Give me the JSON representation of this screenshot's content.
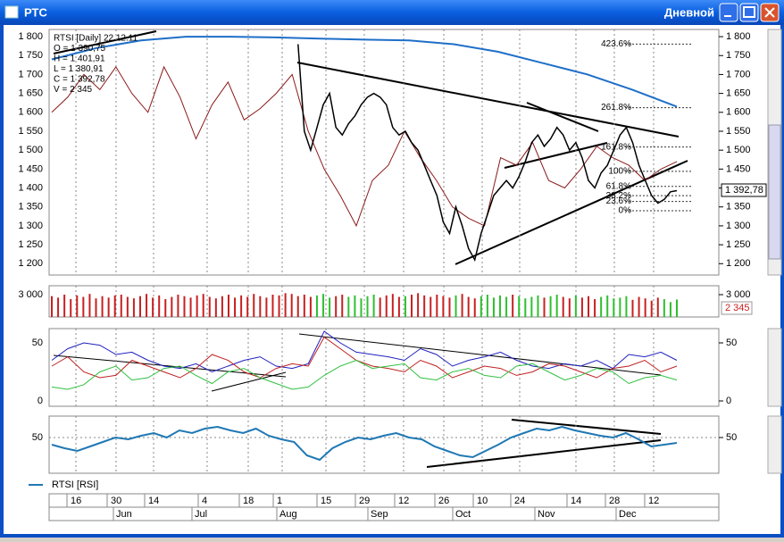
{
  "window": {
    "title": "РТС",
    "period": "Дневной"
  },
  "price_panel": {
    "info": [
      "RTSI [Daily] 22.12.11",
      "O = 1 390,75",
      "H = 1 401,91",
      "L = 1 380,91",
      "C = 1 392,78",
      "V = 2 345"
    ],
    "ylim": [
      1170,
      1819
    ],
    "yticks": [
      {
        "value": 1800,
        "label": "1 800"
      },
      {
        "value": 1750,
        "label": "1 750"
      },
      {
        "value": 1700,
        "label": "1 700"
      },
      {
        "value": 1650,
        "label": "1 650"
      },
      {
        "value": 1600,
        "label": "1 600"
      },
      {
        "value": 1550,
        "label": "1 550"
      },
      {
        "value": 1500,
        "label": "1 500"
      },
      {
        "value": 1450,
        "label": "1 450"
      },
      {
        "value": 1400,
        "label": "1 400"
      },
      {
        "value": 1350,
        "label": "1 350"
      },
      {
        "value": 1300,
        "label": "1 300"
      },
      {
        "value": 1250,
        "label": "1 250"
      },
      {
        "value": 1200,
        "label": "1 200"
      }
    ],
    "last_price_label": "1 392,78",
    "price_color": "#000000",
    "closes": [
      null,
      null,
      null,
      null,
      null,
      null,
      null,
      null,
      null,
      null,
      null,
      null,
      null,
      null,
      null,
      null,
      null,
      null,
      null,
      null,
      null,
      null,
      null,
      null,
      null,
      null,
      null,
      null,
      null,
      null,
      null,
      null,
      null,
      null,
      null,
      null,
      null,
      null,
      null,
      1780,
      1550,
      1500,
      1560,
      1620,
      1650,
      1560,
      1540,
      1570,
      1590,
      1620,
      1640,
      1650,
      1640,
      1620,
      1560,
      1540,
      1550,
      1520,
      1500,
      1460,
      1420,
      1380,
      1310,
      1280,
      1350,
      1300,
      1240,
      1210,
      1280,
      1330,
      1380,
      1400,
      1420,
      1400,
      1430,
      1470,
      1520,
      1540,
      1510,
      1530,
      1560,
      1540,
      1500,
      1520,
      1480,
      1420,
      1400,
      1440,
      1460,
      1500,
      1540,
      1560,
      1520,
      1460,
      1420,
      1380,
      1360,
      1370,
      1390,
      1393
    ],
    "ma_long": [
      1740,
      1770,
      1790,
      1800,
      1800,
      1798,
      1795,
      1792,
      1790,
      1780,
      1760,
      1730,
      1700,
      1660,
      1615
    ],
    "ma_long_color": "#1f6fc8",
    "lagging_line": [
      1600,
      1640,
      1700,
      1660,
      1720,
      1650,
      1600,
      1720,
      1640,
      1530,
      1620,
      1680,
      1580,
      1610,
      1650,
      1700,
      1550,
      1450,
      1380,
      1300,
      1420,
      1460,
      1550,
      1480,
      1420,
      1350,
      1320,
      1300,
      1480,
      1460,
      1520,
      1420,
      1400,
      1450,
      1510,
      1480,
      1460,
      1420,
      1450,
      1470
    ],
    "lagging_color": "#8b1a1a",
    "fibonacci": [
      {
        "value": 1780.5,
        "label": "423.6%"
      },
      {
        "value": 1612.3,
        "label": "261.8%"
      },
      {
        "value": 1508.3,
        "label": "161.8%"
      },
      {
        "value": 1444,
        "label": "100%"
      },
      {
        "value": 1404.3,
        "label": "61.8%"
      },
      {
        "value": 1379.7,
        "label": "38.2%"
      },
      {
        "value": 1364.5,
        "label": "23.6%"
      },
      {
        "value": 1340,
        "label": "0%"
      }
    ]
  },
  "volume_panel": {
    "ylim": [
      0,
      4200
    ],
    "yticks": [
      {
        "value": 3000,
        "label": "3 000"
      }
    ],
    "last_label": "2 345",
    "up_color": "#2fbf2f",
    "down_color": "#c82020",
    "values": [
      2800,
      2600,
      3000,
      2400,
      2900,
      2700,
      3100,
      2500,
      2800,
      2600,
      2900,
      3000,
      2700,
      2500,
      2800,
      3100,
      2600,
      2900,
      2400,
      2700,
      3000,
      2800,
      2600,
      2900,
      3100,
      2700,
      2500,
      2800,
      3000,
      2600,
      2900,
      2700,
      3100,
      2800,
      2600,
      3000,
      2900,
      3200,
      3100,
      2800,
      3000,
      2700,
      2900,
      3100,
      2600,
      2800,
      3000,
      2700,
      2900,
      2500,
      2800,
      3000,
      2600,
      2900,
      3100,
      2700,
      2800,
      3000,
      3200,
      2900,
      2700,
      3000,
      2800,
      2600,
      2900,
      3100,
      2700,
      2500,
      2800,
      3000,
      2600,
      2900,
      2700,
      3000,
      2800,
      2500,
      2700,
      2900,
      2600,
      2800,
      3000,
      2700,
      2500,
      2900,
      2600,
      2800,
      2400,
      2700,
      2900,
      2500,
      2600,
      2800,
      2300,
      2700,
      2500,
      2200,
      2600,
      2400,
      2000,
      2345
    ]
  },
  "oscillator_panel": {
    "ylim": [
      -4.6,
      62.3
    ],
    "yticks": [
      0,
      50
    ],
    "series": [
      {
        "color": "#2020c0",
        "values": [
          35,
          45,
          50,
          48,
          40,
          42,
          35,
          30,
          28,
          32,
          25,
          30,
          35,
          38,
          30,
          28,
          32,
          60,
          50,
          42,
          40,
          38,
          35,
          45,
          40,
          30,
          35,
          38,
          42,
          35,
          30,
          28,
          32,
          30,
          35,
          28,
          40,
          38,
          42,
          35
        ]
      },
      {
        "color": "#c02020",
        "values": [
          30,
          38,
          25,
          20,
          22,
          35,
          30,
          25,
          20,
          28,
          40,
          35,
          25,
          20,
          28,
          32,
          30,
          55,
          45,
          35,
          30,
          28,
          25,
          35,
          30,
          20,
          25,
          30,
          28,
          22,
          25,
          32,
          30,
          25,
          20,
          28,
          30,
          35,
          25,
          30
        ]
      },
      {
        "color": "#30c040",
        "values": [
          12,
          10,
          14,
          25,
          30,
          18,
          20,
          28,
          30,
          22,
          15,
          25,
          28,
          20,
          15,
          10,
          12,
          22,
          30,
          35,
          28,
          30,
          32,
          20,
          18,
          25,
          28,
          22,
          20,
          30,
          32,
          25,
          18,
          22,
          28,
          25,
          15,
          20,
          22,
          18
        ]
      }
    ]
  },
  "rsi_panel": {
    "ylim": [
      10,
      74
    ],
    "yticks": [
      50
    ],
    "color": "#1f78b4",
    "legend": "RTSI [RSI]",
    "values": [
      42,
      38,
      35,
      40,
      45,
      50,
      48,
      52,
      55,
      50,
      58,
      55,
      60,
      62,
      58,
      55,
      60,
      52,
      48,
      45,
      30,
      25,
      38,
      45,
      50,
      48,
      52,
      55,
      50,
      48,
      40,
      35,
      30,
      28,
      35,
      42,
      50,
      55,
      60,
      58,
      62,
      58,
      55,
      52,
      50,
      55,
      48,
      40,
      42,
      44
    ]
  },
  "date_axis": {
    "days": [
      "16",
      "30",
      "14",
      "4",
      "18",
      "1",
      "15",
      "29",
      "12",
      "26",
      "10",
      "24",
      "14",
      "28",
      "12"
    ],
    "months": [
      "Jun",
      "Jul",
      "Aug",
      "Sep",
      "Oct",
      "Nov",
      "Dec"
    ]
  }
}
